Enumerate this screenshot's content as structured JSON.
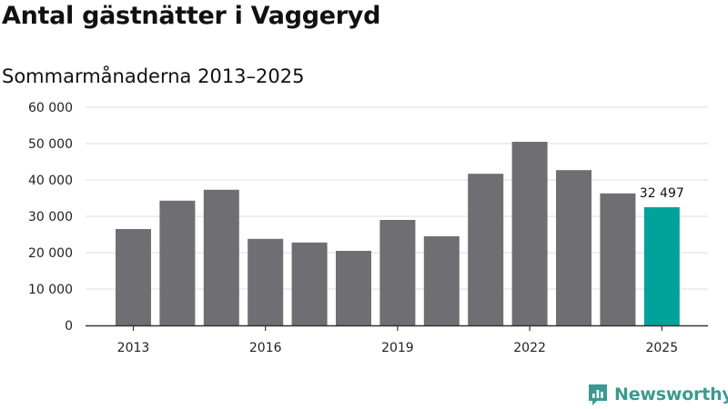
{
  "title": "Antal gästnätter i Vaggeryd",
  "subtitle": "Sommarmånaderna 2013–2025",
  "brand": {
    "name": "Newsworthy",
    "icon": "newsworthy-logo-icon",
    "color": "#3a9a91"
  },
  "chart_data": {
    "type": "bar",
    "categories": [
      "2013",
      "2014",
      "2015",
      "2016",
      "2017",
      "2018",
      "2019",
      "2020",
      "2021",
      "2022",
      "2023",
      "2024",
      "2025"
    ],
    "values": [
      26500,
      34300,
      37300,
      23800,
      22800,
      20500,
      29000,
      24500,
      41700,
      50500,
      42700,
      36300,
      32497
    ],
    "ylim": [
      0,
      60000
    ],
    "yticks": [
      0,
      10000,
      20000,
      30000,
      40000,
      50000,
      60000
    ],
    "ytick_labels": [
      "0",
      "10 000",
      "20 000",
      "30 000",
      "40 000",
      "50 000",
      "60 000"
    ],
    "xtick_labels": [
      "2013",
      "2016",
      "2019",
      "2022",
      "2025"
    ],
    "data_labels": [
      {
        "category": "2025",
        "text": "32 497"
      }
    ],
    "colors": {
      "bar": "#6e6e73",
      "highlight": "#00a29a",
      "grid": "#dcdcdc",
      "axis": "#333333"
    },
    "highlight_category": "2025",
    "grid": true
  }
}
